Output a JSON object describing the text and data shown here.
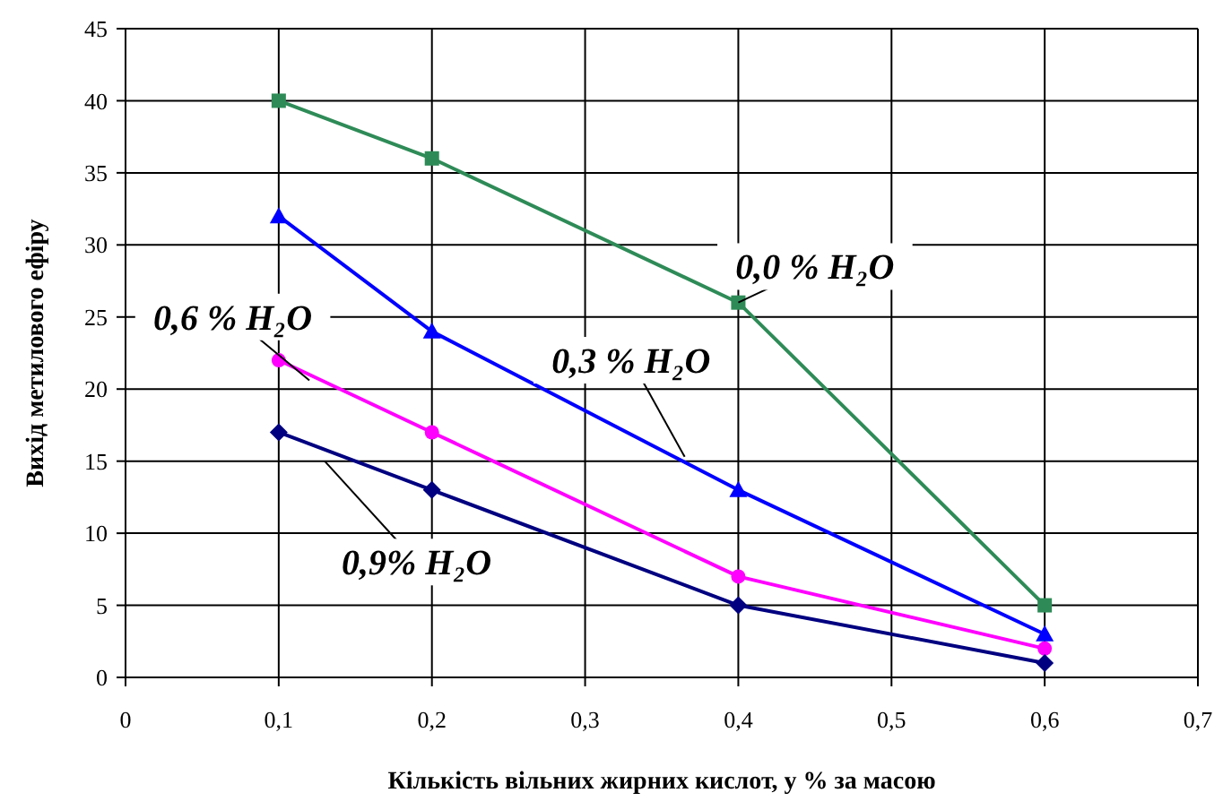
{
  "chart_data": {
    "type": "line",
    "xlabel": "Кількість вільних жирних кислот, у % за масою",
    "ylabel": "Вихід метилового ефіру",
    "x": [
      0.1,
      0.2,
      0.4,
      0.6
    ],
    "series": [
      {
        "name": "0,0 % H₂O",
        "color": "#2e8b57",
        "marker": "square",
        "values": [
          40,
          36,
          26,
          5
        ]
      },
      {
        "name": "0,3 % H₂O",
        "color": "#0000ff",
        "marker": "triangle",
        "values": [
          32,
          24,
          13,
          3
        ]
      },
      {
        "name": "0,6 % H₂O",
        "color": "#ff00ff",
        "marker": "circle",
        "values": [
          22,
          17,
          7,
          2
        ]
      },
      {
        "name": "0,9% H₂O",
        "color": "#000080",
        "marker": "diamond",
        "values": [
          17,
          13,
          5,
          1
        ]
      }
    ],
    "xlim": [
      0,
      0.7
    ],
    "xticks": [
      0,
      {
        "value": 0.1,
        "label": "0,1"
      },
      {
        "value": 0.2,
        "label": "0,2"
      },
      {
        "value": 0.3,
        "label": "0,3"
      },
      {
        "value": 0.4,
        "label": "0,4"
      },
      {
        "value": 0.5,
        "label": "0,5"
      },
      {
        "value": 0.6,
        "label": "0,6"
      },
      {
        "value": 0.7,
        "label": "0,7"
      }
    ],
    "ylim": [
      0,
      45
    ],
    "yticks": [
      0,
      5,
      10,
      15,
      20,
      25,
      30,
      35,
      40,
      45
    ],
    "grid": true
  }
}
